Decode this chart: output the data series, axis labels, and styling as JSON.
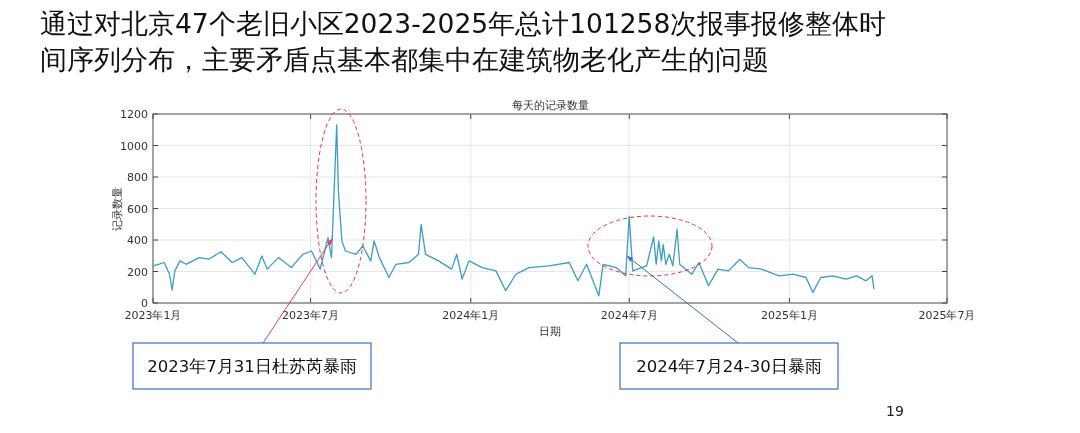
{
  "chart_data": {
    "type": "line",
    "title": "通过对北京47个老旧小区2023-2025年总计101258次报事报修整体时间序列分布，主要矛盾点基本都集中在建筑物老化产生的问题",
    "subtitle": "每天的记录数量",
    "xlabel": "日期",
    "ylabel": "记录数量",
    "x": [
      "2023-01-01",
      "2023-01-07",
      "2023-01-14",
      "2023-01-20",
      "2023-01-23",
      "2023-01-26",
      "2023-02-01",
      "2023-02-08",
      "2023-02-23",
      "2023-03-06",
      "2023-03-20",
      "2023-04-02",
      "2023-04-13",
      "2023-04-28",
      "2023-05-06",
      "2023-05-12",
      "2023-05-25",
      "2023-06-09",
      "2023-06-22",
      "2023-07-02",
      "2023-07-12",
      "2023-07-21",
      "2023-07-25",
      "2023-07-31",
      "2023-08-02",
      "2023-08-06",
      "2023-08-10",
      "2023-08-22",
      "2023-08-30",
      "2023-09-08",
      "2023-09-12",
      "2023-09-18",
      "2023-09-29",
      "2023-10-07",
      "2023-10-22",
      "2023-11-02",
      "2023-11-05",
      "2023-11-10",
      "2023-11-25",
      "2023-12-10",
      "2023-12-16",
      "2023-12-22",
      "2023-12-30",
      "2024-01-14",
      "2024-01-30",
      "2024-02-10",
      "2024-02-22",
      "2024-03-08",
      "2024-03-31",
      "2024-04-23",
      "2024-05-03",
      "2024-05-13",
      "2024-05-27",
      "2024-06-01",
      "2024-06-16",
      "2024-06-27",
      "2024-07-01",
      "2024-07-05",
      "2024-07-21",
      "2024-07-29",
      "2024-08-01",
      "2024-08-04",
      "2024-08-07",
      "2024-08-09",
      "2024-08-12",
      "2024-08-16",
      "2024-08-20",
      "2024-08-25",
      "2024-08-28",
      "2024-09-11",
      "2024-09-19",
      "2024-09-30",
      "2024-10-11",
      "2024-10-23",
      "2024-11-05",
      "2024-11-15",
      "2024-11-30",
      "2024-12-20",
      "2025-01-05",
      "2025-01-20",
      "2025-01-28",
      "2025-02-06",
      "2025-02-20",
      "2025-03-07",
      "2025-03-19",
      "2025-03-30",
      "2025-04-06",
      "2025-04-08"
    ],
    "series": [
      {
        "color": "#3d9dc2",
        "values": [
          236,
          246,
          257,
          183,
          82,
          204,
          267,
          246,
          288,
          278,
          326,
          257,
          288,
          183,
          299,
          215,
          288,
          225,
          309,
          330,
          215,
          415,
          288,
          1130,
          709,
          394,
          330,
          309,
          362,
          267,
          394,
          288,
          162,
          246,
          257,
          309,
          499,
          309,
          267,
          215,
          309,
          152,
          267,
          225,
          204,
          78,
          183,
          225,
          236,
          257,
          141,
          246,
          46,
          246,
          225,
          173,
          552,
          204,
          236,
          419,
          246,
          394,
          267,
          373,
          246,
          309,
          236,
          467,
          246,
          183,
          257,
          109,
          215,
          204,
          278,
          225,
          215,
          173,
          183,
          162,
          67,
          162,
          173,
          152,
          173,
          141,
          173,
          88
        ]
      }
    ],
    "xlim": [
      "2023-01-01",
      "2025-07-01"
    ],
    "xticks": [
      {
        "value": "2023-01-01",
        "label": "2023年1月"
      },
      {
        "value": "2023-07-01",
        "label": "2023年7月"
      },
      {
        "value": "2024-01-01",
        "label": "2024年1月"
      },
      {
        "value": "2024-07-01",
        "label": "2024年7月"
      },
      {
        "value": "2025-01-01",
        "label": "2025年1月"
      },
      {
        "value": "2025-07-01",
        "label": "2025年7月"
      }
    ],
    "ylim": [
      0,
      1200
    ],
    "yticks": [
      0,
      200,
      400,
      600,
      800,
      1000,
      1200
    ],
    "grid": true,
    "annotations": [
      {
        "text": "2023年7月31日杜苏芮暴雨",
        "x": "2023-07-26",
        "y": 410
      },
      {
        "text": "2024年7月24-30日暴雨",
        "x": "2024-06-28",
        "y": 300
      },
      "19"
    ]
  }
}
